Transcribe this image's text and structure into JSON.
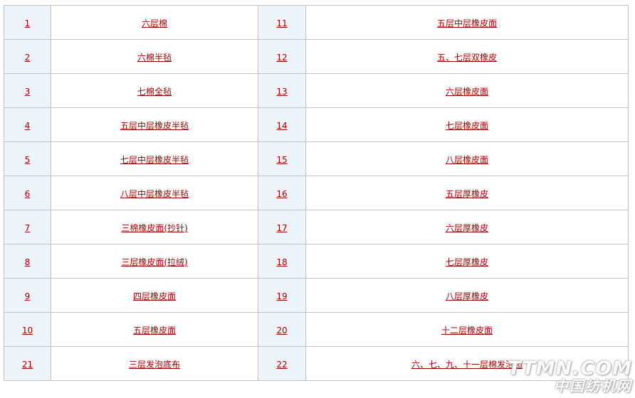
{
  "colors": {
    "link": "#990000",
    "number_cell_bg": "#edf5fb",
    "border": "#c3c3c3",
    "page_bg": "#ffffff"
  },
  "table": {
    "rows": [
      {
        "left_no": "1",
        "left_label": "六层棉",
        "right_no": "11",
        "right_label": "五层中层橡皮面"
      },
      {
        "left_no": "2",
        "left_label": "六棉半毡",
        "right_no": "12",
        "right_label": "五、七层双橡皮"
      },
      {
        "left_no": "3",
        "left_label": "七棉全毡",
        "right_no": "13",
        "right_label": "六层橡皮面"
      },
      {
        "left_no": "4",
        "left_label": "五层中层橡皮半毡",
        "right_no": "14",
        "right_label": "七层橡皮面"
      },
      {
        "left_no": "5",
        "left_label": "七层中层橡皮半毡",
        "right_no": "15",
        "right_label": "八层橡皮面"
      },
      {
        "left_no": "6",
        "left_label": "八层中层橡皮半毡",
        "right_no": "16",
        "right_label": "五层厚橡皮"
      },
      {
        "left_no": "7",
        "left_label": "三棉橡皮面(抄针)",
        "right_no": "17",
        "right_label": "六层厚橡皮"
      },
      {
        "left_no": "8",
        "left_label": "三层橡皮面(拉绒)",
        "right_no": "18",
        "right_label": "七层厚橡皮"
      },
      {
        "left_no": "9",
        "left_label": "四层橡皮面",
        "right_no": "19",
        "right_label": "八层厚橡皮"
      },
      {
        "left_no": "10",
        "left_label": "五层橡皮面",
        "right_no": "20",
        "right_label": "十二层橡皮面"
      },
      {
        "left_no": "21",
        "left_label": "三层发泡底布",
        "right_no": "22",
        "right_label": "六、七、九、十一层棉发泡毡"
      }
    ]
  },
  "watermark": {
    "line1": "TTMN.COM",
    "line2": "中国纺机网"
  }
}
